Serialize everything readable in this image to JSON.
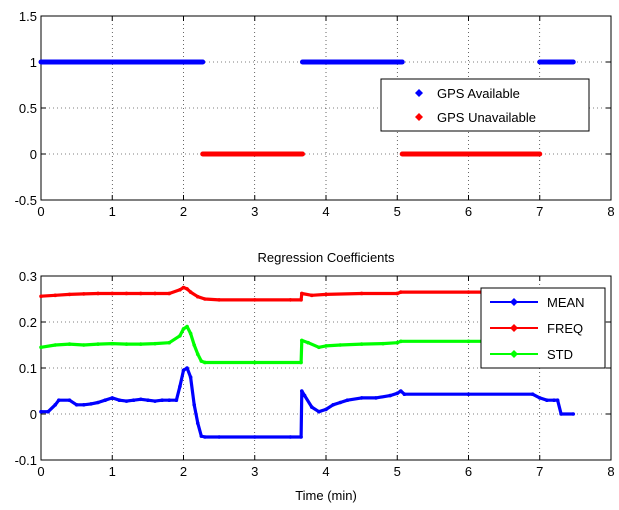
{
  "chart_data": [
    {
      "type": "scatter",
      "title": "",
      "xlabel": "",
      "ylabel": "",
      "xlim": [
        0,
        8
      ],
      "ylim": [
        -0.5,
        1.5
      ],
      "xticks": [
        "0",
        "1",
        "2",
        "3",
        "4",
        "5",
        "6",
        "7",
        "8"
      ],
      "yticks": [
        "-0.5",
        "0",
        "0.5",
        "1",
        "1.5"
      ],
      "grid": true,
      "legend_position": "right",
      "series": [
        {
          "name": "GPS Available",
          "color": "#0000ff",
          "segments": [
            {
              "x_start": 0.0,
              "x_end": 2.27,
              "y": 1
            },
            {
              "x_start": 3.67,
              "x_end": 5.07,
              "y": 1
            },
            {
              "x_start": 7.0,
              "x_end": 7.47,
              "y": 1
            }
          ]
        },
        {
          "name": "GPS Unavailable",
          "color": "#ff0000",
          "segments": [
            {
              "x_start": 2.27,
              "x_end": 3.67,
              "y": 0
            },
            {
              "x_start": 5.07,
              "x_end": 7.0,
              "y": 0
            }
          ]
        }
      ]
    },
    {
      "type": "line",
      "title": "Regression Coefficients",
      "xlabel": "Time (min)",
      "ylabel": "",
      "xlim": [
        0,
        8
      ],
      "ylim": [
        -0.1,
        0.3
      ],
      "xticks": [
        "0",
        "1",
        "2",
        "3",
        "4",
        "5",
        "6",
        "7",
        "8"
      ],
      "yticks": [
        "-0.1",
        "0",
        "0.1",
        "0.2",
        "0.3"
      ],
      "grid": true,
      "legend_position": "top-right",
      "series": [
        {
          "name": "MEAN",
          "color": "#0000ff",
          "x": [
            0,
            0.1,
            0.2,
            0.25,
            0.4,
            0.5,
            0.6,
            0.7,
            0.8,
            0.9,
            1.0,
            1.1,
            1.2,
            1.3,
            1.4,
            1.5,
            1.6,
            1.7,
            1.8,
            1.9,
            1.95,
            2.0,
            2.05,
            2.1,
            2.15,
            2.2,
            2.25,
            2.3,
            2.5,
            3.0,
            3.5,
            3.65,
            3.66,
            3.7,
            3.8,
            3.9,
            4.0,
            4.1,
            4.2,
            4.3,
            4.5,
            4.7,
            4.9,
            5.0,
            5.05,
            5.1,
            6.0,
            6.9,
            7.0,
            7.1,
            7.2,
            7.25,
            7.3,
            7.47
          ],
          "y": [
            0.005,
            0.005,
            0.02,
            0.03,
            0.03,
            0.02,
            0.02,
            0.022,
            0.025,
            0.03,
            0.035,
            0.03,
            0.028,
            0.03,
            0.032,
            0.03,
            0.028,
            0.03,
            0.03,
            0.03,
            0.06,
            0.095,
            0.1,
            0.08,
            0.02,
            -0.02,
            -0.048,
            -0.05,
            -0.05,
            -0.05,
            -0.05,
            -0.05,
            0.05,
            0.04,
            0.015,
            0.005,
            0.01,
            0.02,
            0.025,
            0.03,
            0.035,
            0.035,
            0.04,
            0.045,
            0.05,
            0.043,
            0.043,
            0.043,
            0.035,
            0.03,
            0.03,
            0.03,
            0.0,
            0.0
          ]
        },
        {
          "name": "FREQ",
          "color": "#ff0000",
          "x": [
            0,
            0.2,
            0.4,
            0.6,
            0.8,
            1.0,
            1.2,
            1.4,
            1.6,
            1.8,
            1.95,
            2.0,
            2.05,
            2.1,
            2.2,
            2.3,
            2.5,
            3.0,
            3.5,
            3.65,
            3.66,
            3.8,
            4.0,
            4.5,
            5.0,
            5.05,
            6.0,
            7.0,
            7.47
          ],
          "y": [
            0.256,
            0.258,
            0.26,
            0.261,
            0.262,
            0.262,
            0.262,
            0.262,
            0.262,
            0.262,
            0.27,
            0.275,
            0.272,
            0.265,
            0.255,
            0.25,
            0.248,
            0.248,
            0.248,
            0.248,
            0.262,
            0.258,
            0.26,
            0.262,
            0.262,
            0.265,
            0.265,
            0.265,
            0.265
          ]
        },
        {
          "name": "STD",
          "color": "#00ff00",
          "x": [
            0,
            0.2,
            0.4,
            0.6,
            0.8,
            1.0,
            1.2,
            1.4,
            1.6,
            1.8,
            1.95,
            2.0,
            2.05,
            2.1,
            2.15,
            2.2,
            2.25,
            2.3,
            3.0,
            3.65,
            3.66,
            3.75,
            3.9,
            4.0,
            4.2,
            4.5,
            4.8,
            5.0,
            5.05,
            6.0,
            7.0,
            7.47
          ],
          "y": [
            0.145,
            0.15,
            0.152,
            0.15,
            0.152,
            0.153,
            0.152,
            0.152,
            0.153,
            0.155,
            0.17,
            0.185,
            0.19,
            0.175,
            0.15,
            0.13,
            0.115,
            0.112,
            0.112,
            0.112,
            0.16,
            0.155,
            0.145,
            0.148,
            0.15,
            0.152,
            0.153,
            0.155,
            0.158,
            0.158,
            0.158,
            0.158
          ]
        }
      ]
    }
  ]
}
